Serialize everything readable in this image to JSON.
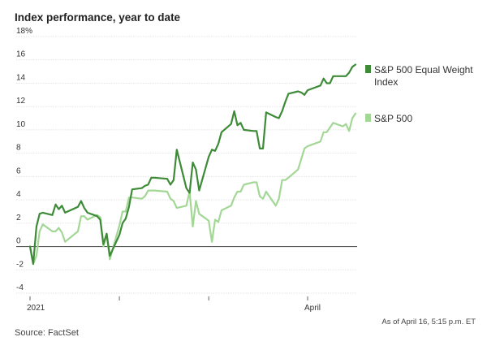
{
  "chart_data": {
    "type": "line",
    "title": "Index performance, year to date",
    "ylim": [
      -4,
      18
    ],
    "y_ticks": [
      {
        "value": 18,
        "label": "18%"
      },
      {
        "value": 16,
        "label": "16"
      },
      {
        "value": 14,
        "label": "14"
      },
      {
        "value": 12,
        "label": "12"
      },
      {
        "value": 10,
        "label": "10"
      },
      {
        "value": 8,
        "label": "8"
      },
      {
        "value": 6,
        "label": "6"
      },
      {
        "value": 4,
        "label": "4"
      },
      {
        "value": 2,
        "label": "2"
      },
      {
        "value": 0,
        "label": "0"
      },
      {
        "value": -2,
        "label": "-2"
      },
      {
        "value": -4,
        "label": "-4"
      }
    ],
    "x_ticks": [
      {
        "date": "2021-01-04",
        "label": "2021"
      },
      {
        "date": "2021-02-01",
        "label": ""
      },
      {
        "date": "2021-03-01",
        "label": ""
      },
      {
        "date": "2021-04-01",
        "label": "April"
      }
    ],
    "xlim": [
      "2021-01-01",
      "2021-04-16"
    ],
    "series": [
      {
        "name": "S&P 500 Equal Weight Index",
        "color": "#3d8b37",
        "x": [
          "2021-01-04",
          "2021-01-05",
          "2021-01-06",
          "2021-01-07",
          "2021-01-08",
          "2021-01-11",
          "2021-01-12",
          "2021-01-13",
          "2021-01-14",
          "2021-01-15",
          "2021-01-19",
          "2021-01-20",
          "2021-01-21",
          "2021-01-22",
          "2021-01-25",
          "2021-01-26",
          "2021-01-27",
          "2021-01-28",
          "2021-01-29",
          "2021-02-01",
          "2021-02-02",
          "2021-02-03",
          "2021-02-04",
          "2021-02-05",
          "2021-02-08",
          "2021-02-09",
          "2021-02-10",
          "2021-02-11",
          "2021-02-12",
          "2021-02-16",
          "2021-02-17",
          "2021-02-18",
          "2021-02-19",
          "2021-02-22",
          "2021-02-23",
          "2021-02-24",
          "2021-02-25",
          "2021-02-26",
          "2021-03-01",
          "2021-03-02",
          "2021-03-03",
          "2021-03-04",
          "2021-03-05",
          "2021-03-08",
          "2021-03-09",
          "2021-03-10",
          "2021-03-11",
          "2021-03-12",
          "2021-03-15",
          "2021-03-16",
          "2021-03-17",
          "2021-03-18",
          "2021-03-19",
          "2021-03-22",
          "2021-03-23",
          "2021-03-24",
          "2021-03-25",
          "2021-03-26",
          "2021-03-29",
          "2021-03-30",
          "2021-03-31",
          "2021-04-01",
          "2021-04-05",
          "2021-04-06",
          "2021-04-07",
          "2021-04-08",
          "2021-04-09",
          "2021-04-12",
          "2021-04-13",
          "2021-04-14",
          "2021-04-15",
          "2021-04-16"
        ],
        "values": [
          0.0,
          -1.5,
          1.7,
          2.8,
          2.9,
          2.7,
          3.6,
          3.2,
          3.5,
          2.9,
          3.4,
          3.9,
          3.3,
          2.9,
          2.6,
          2.3,
          0.2,
          1.1,
          -0.8,
          1.0,
          2.0,
          2.4,
          3.4,
          4.9,
          5.0,
          5.2,
          5.3,
          5.9,
          5.9,
          5.8,
          5.3,
          5.7,
          8.3,
          5.0,
          4.6,
          7.2,
          6.6,
          4.8,
          7.7,
          8.3,
          8.2,
          8.8,
          9.8,
          10.5,
          11.6,
          10.4,
          10.6,
          10.0,
          9.9,
          9.9,
          8.4,
          8.4,
          11.5,
          11.1,
          11.0,
          11.6,
          12.4,
          13.1,
          13.3,
          13.2,
          13.0,
          13.4,
          13.8,
          14.4,
          14.0,
          14.0,
          14.6,
          14.6,
          14.6,
          14.9,
          15.4,
          15.6
        ]
      },
      {
        "name": "S&P 500",
        "color": "#a3d796",
        "x": [
          "2021-01-04",
          "2021-01-05",
          "2021-01-06",
          "2021-01-07",
          "2021-01-08",
          "2021-01-11",
          "2021-01-12",
          "2021-01-13",
          "2021-01-14",
          "2021-01-15",
          "2021-01-19",
          "2021-01-20",
          "2021-01-21",
          "2021-01-22",
          "2021-01-25",
          "2021-01-26",
          "2021-01-27",
          "2021-01-28",
          "2021-01-29",
          "2021-02-01",
          "2021-02-02",
          "2021-02-03",
          "2021-02-04",
          "2021-02-05",
          "2021-02-08",
          "2021-02-09",
          "2021-02-10",
          "2021-02-11",
          "2021-02-12",
          "2021-02-16",
          "2021-02-17",
          "2021-02-18",
          "2021-02-19",
          "2021-02-22",
          "2021-02-23",
          "2021-02-24",
          "2021-02-25",
          "2021-02-26",
          "2021-03-01",
          "2021-03-02",
          "2021-03-03",
          "2021-03-04",
          "2021-03-05",
          "2021-03-08",
          "2021-03-09",
          "2021-03-10",
          "2021-03-11",
          "2021-03-12",
          "2021-03-15",
          "2021-03-16",
          "2021-03-17",
          "2021-03-18",
          "2021-03-19",
          "2021-03-22",
          "2021-03-23",
          "2021-03-24",
          "2021-03-25",
          "2021-03-26",
          "2021-03-29",
          "2021-03-30",
          "2021-03-31",
          "2021-04-01",
          "2021-04-05",
          "2021-04-06",
          "2021-04-07",
          "2021-04-08",
          "2021-04-09",
          "2021-04-12",
          "2021-04-13",
          "2021-04-14",
          "2021-04-15",
          "2021-04-16"
        ],
        "values": [
          0.0,
          -1.5,
          -0.8,
          1.3,
          1.9,
          1.3,
          1.3,
          1.6,
          1.2,
          0.4,
          1.3,
          2.6,
          2.6,
          2.3,
          2.7,
          2.5,
          0.0,
          1.0,
          -1.1,
          1.8,
          3.0,
          3.0,
          4.2,
          4.2,
          4.1,
          4.3,
          4.8,
          4.8,
          4.8,
          4.7,
          4.1,
          3.9,
          3.3,
          3.5,
          4.7,
          1.7,
          3.9,
          2.8,
          2.2,
          0.4,
          2.3,
          2.1,
          3.1,
          3.5,
          4.2,
          4.7,
          4.7,
          5.3,
          5.5,
          5.5,
          4.3,
          4.1,
          4.7,
          3.5,
          4.1,
          5.7,
          5.7,
          5.9,
          6.6,
          7.5,
          8.4,
          8.6,
          9.0,
          9.8,
          9.8,
          10.2,
          10.6,
          10.3,
          10.5,
          9.9,
          11.0,
          11.4
        ]
      }
    ],
    "zero_line": true,
    "grid": true,
    "legend": "right"
  },
  "footer": {
    "source": "Source: FactSet",
    "note": "As of April 16, 5:15 p.m. ET"
  }
}
